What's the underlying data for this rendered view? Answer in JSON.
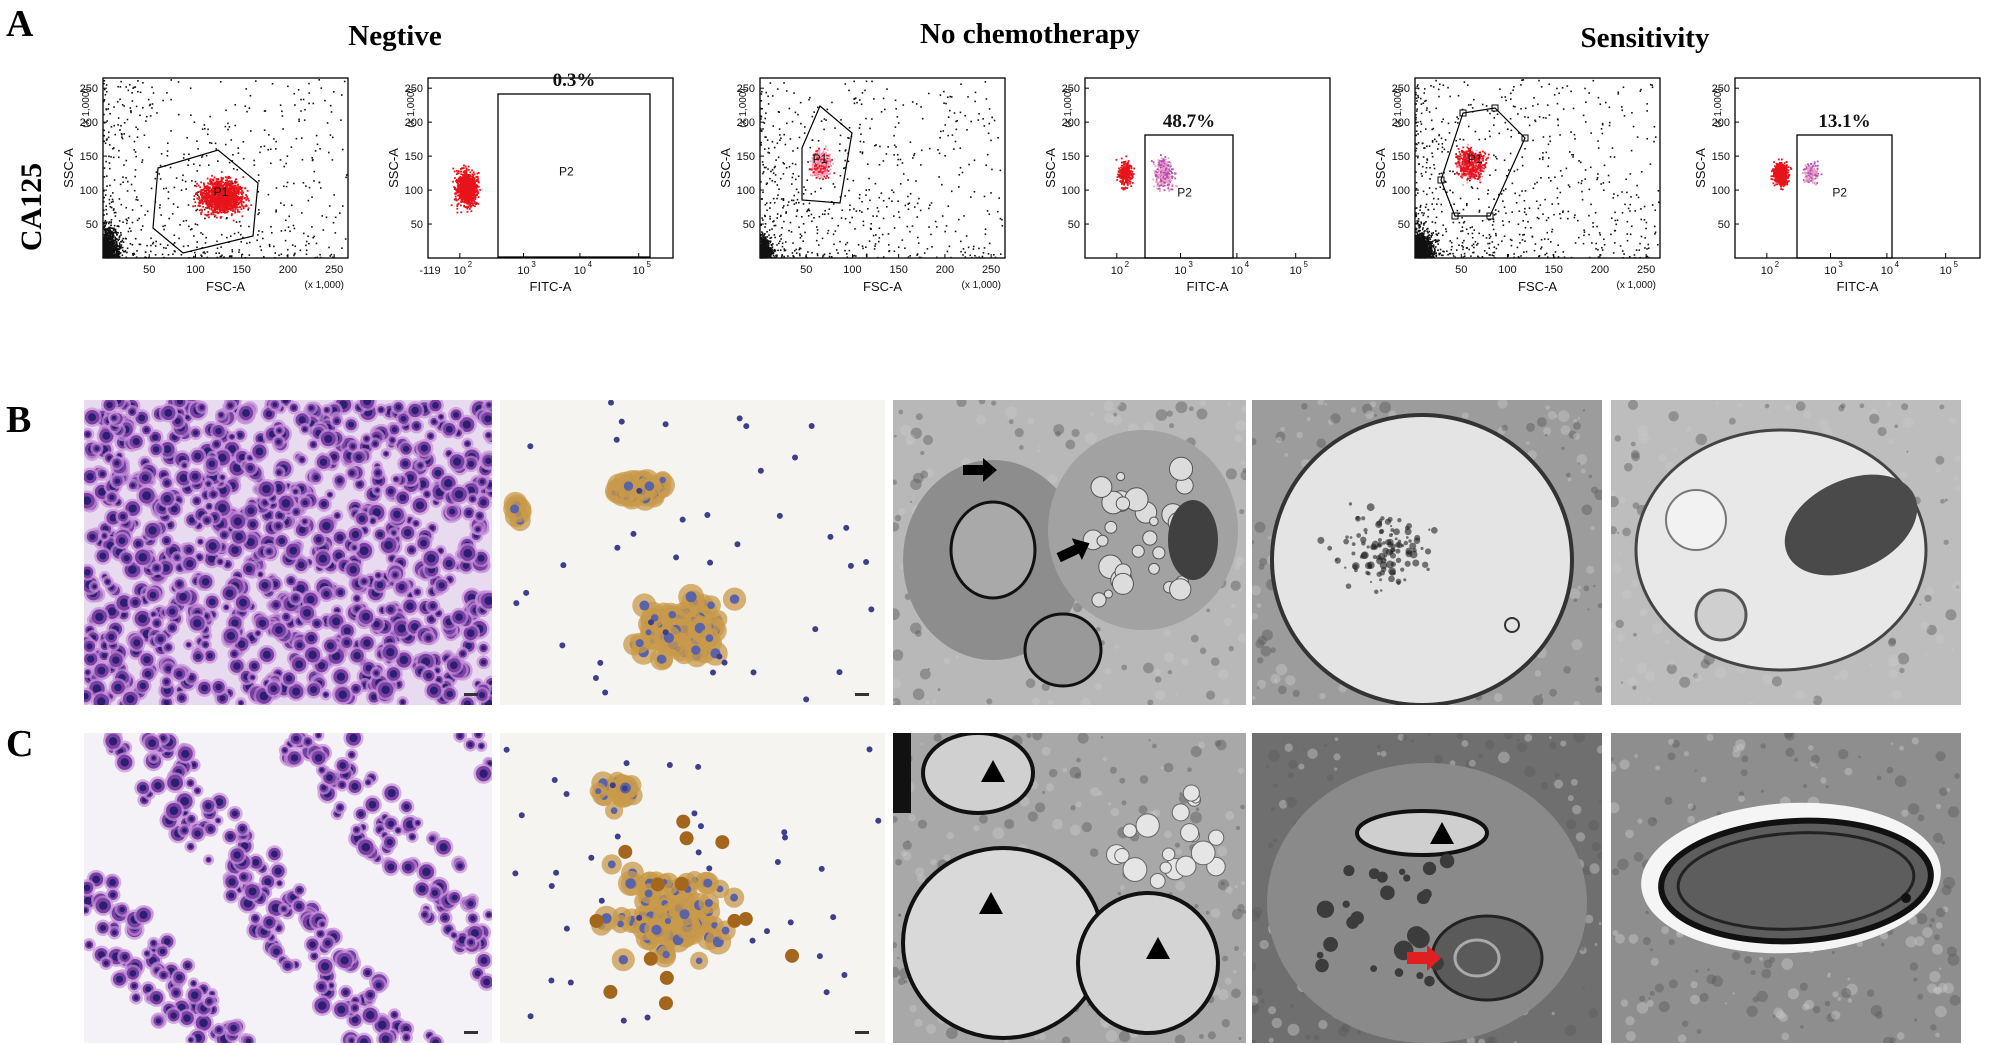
{
  "panel_labels": {
    "a": "A",
    "b": "B",
    "c": "C"
  },
  "row_label": "CA125",
  "group_titles": {
    "negative": "Negtive",
    "no_chemo": "No chemotherapy",
    "sensitivity": "Sensitivity"
  },
  "axis_text": {
    "fsc": "FSC-A",
    "ssc": "SSC-A",
    "fitc": "FITC-A",
    "multiplier": "(x 1,000)",
    "scatter_x_ticks": [
      "50",
      "100",
      "150",
      "200",
      "250"
    ],
    "scatter_y_ticks": [
      "50",
      "100",
      "150",
      "200",
      "250"
    ],
    "fitc_ticks": [
      "10",
      "10",
      "10",
      "10"
    ],
    "fitc_exps": [
      "2",
      "3",
      "4",
      "5"
    ],
    "negative_fitc_first_tick": "-119"
  },
  "gates": {
    "p1": "P1",
    "p2": "P2"
  },
  "percentages": {
    "negative": "0.3%",
    "no_chemo": "48.7%",
    "sensitivity": "13.1%"
  },
  "colors": {
    "events_black": "#111111",
    "events_red": "#e8141b",
    "events_pink": "#f0a0c0",
    "events_purple": "#b050b8",
    "he_stain": "#7a3fa2",
    "ihc_brown": "#c89a4a",
    "tem_gray": "#8c8c8c",
    "arrow_red": "#e02020"
  },
  "image_panels": {
    "row_b": [
      "he-stain-micrograph",
      "ihc-micrograph",
      "tem-overview-arrows",
      "tem-vacuole",
      "tem-autophagosome"
    ],
    "row_c": [
      "he-stain-micrograph",
      "ihc-micrograph",
      "tem-nuclei-arrowheads",
      "tem-cell-red-arrow",
      "tem-myelin-figure"
    ]
  }
}
